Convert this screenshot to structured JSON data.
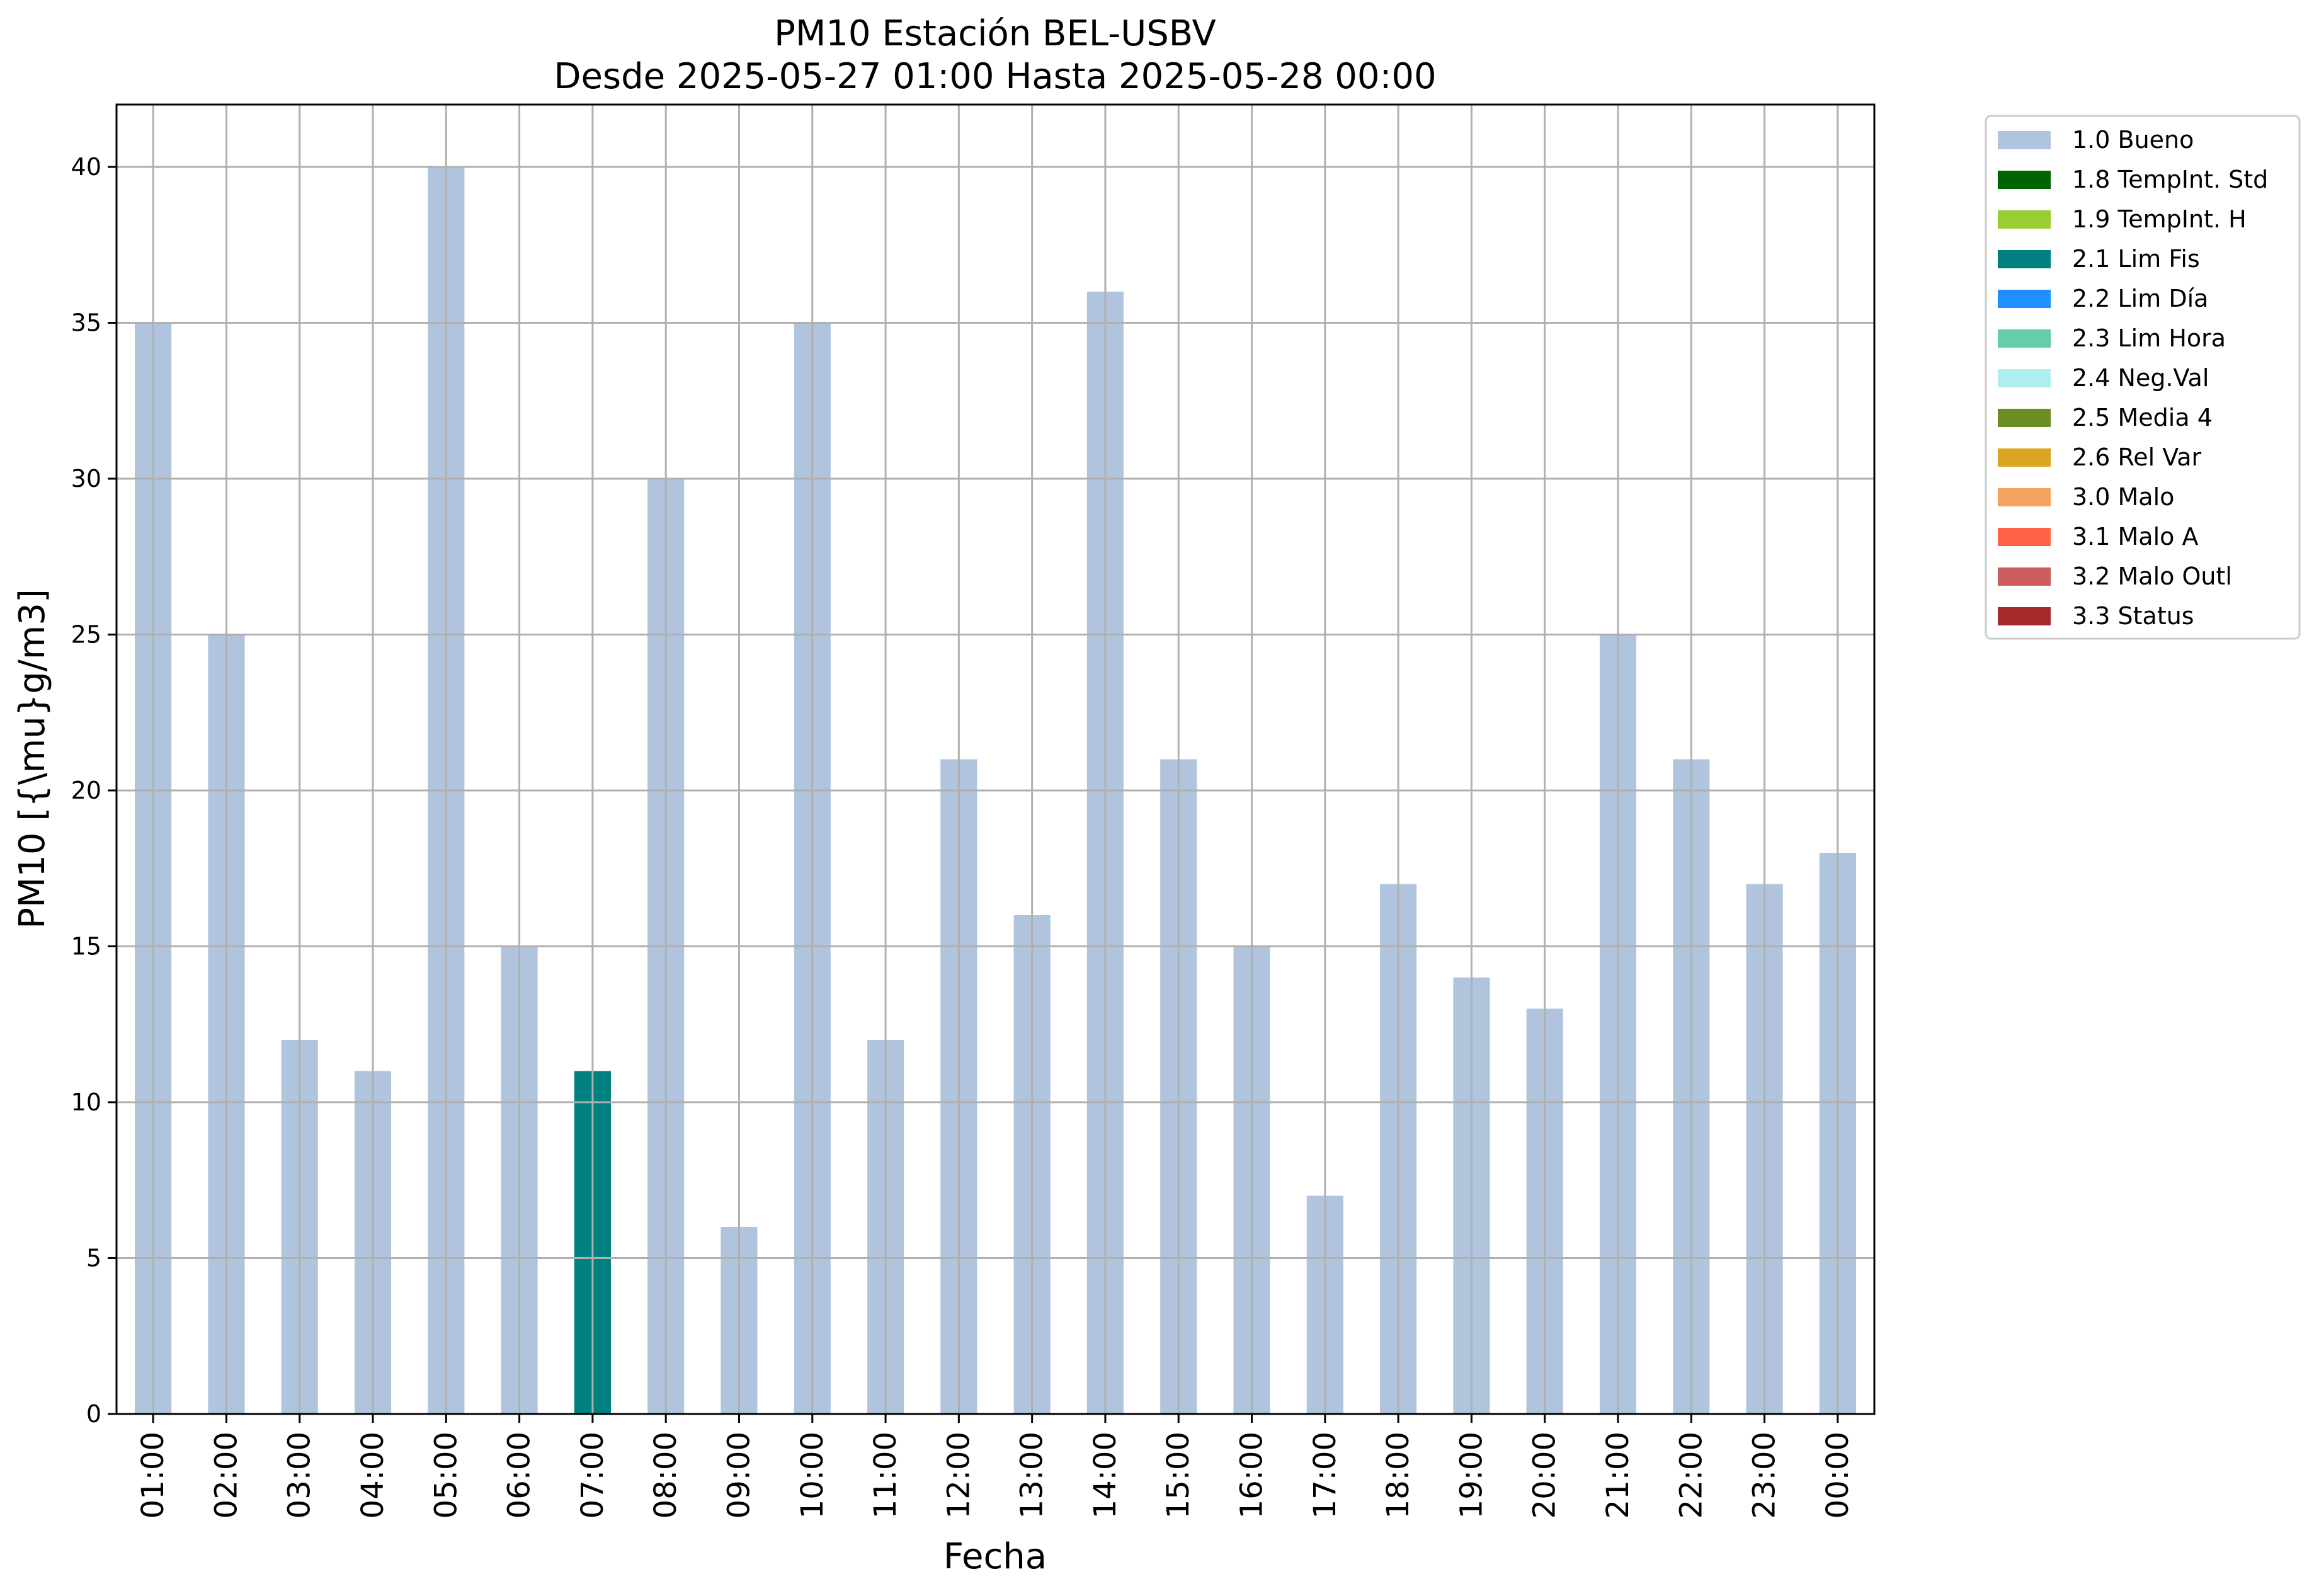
{
  "chart_data": {
    "type": "bar",
    "title": "PM10 Estación BEL-USBV",
    "subtitle": "Desde 2025-05-27 01:00 Hasta 2025-05-28 00:00",
    "xlabel": "Fecha",
    "ylabel": "PM10 [{\\mu}g/m3]",
    "ylim": [
      0,
      42
    ],
    "yticks": [
      0,
      5,
      10,
      15,
      20,
      25,
      30,
      35,
      40
    ],
    "grid": true,
    "legend_position": "outside-right-top",
    "categories": [
      "01:00",
      "02:00",
      "03:00",
      "04:00",
      "05:00",
      "06:00",
      "07:00",
      "08:00",
      "09:00",
      "10:00",
      "11:00",
      "12:00",
      "13:00",
      "14:00",
      "15:00",
      "16:00",
      "17:00",
      "18:00",
      "19:00",
      "20:00",
      "21:00",
      "22:00",
      "23:00",
      "00:00"
    ],
    "values": [
      35,
      25,
      12,
      11,
      40,
      15,
      11,
      30,
      6,
      35,
      12,
      21,
      16,
      36,
      21,
      15,
      7,
      17,
      14,
      13,
      25,
      21,
      17,
      18
    ],
    "flags": [
      "1.0 Bueno",
      "1.0 Bueno",
      "1.0 Bueno",
      "1.0 Bueno",
      "1.0 Bueno",
      "1.0 Bueno",
      "2.1 Lim Fis",
      "1.0 Bueno",
      "1.0 Bueno",
      "1.0 Bueno",
      "1.0 Bueno",
      "1.0 Bueno",
      "1.0 Bueno",
      "1.0 Bueno",
      "1.0 Bueno",
      "1.0 Bueno",
      "1.0 Bueno",
      "1.0 Bueno",
      "1.0 Bueno",
      "1.0 Bueno",
      "1.0 Bueno",
      "1.0 Bueno",
      "1.0 Bueno",
      "1.0 Bueno"
    ],
    "legend": [
      {
        "label": "1.0 Bueno",
        "color": "#b0c4de"
      },
      {
        "label": "1.8 TempInt. Std",
        "color": "#006400"
      },
      {
        "label": "1.9 TempInt. H",
        "color": "#9acd32"
      },
      {
        "label": "2.1 Lim Fis",
        "color": "#008080"
      },
      {
        "label": "2.2 Lim Día",
        "color": "#1e90ff"
      },
      {
        "label": "2.3 Lim Hora",
        "color": "#66cdaa"
      },
      {
        "label": "2.4 Neg.Val",
        "color": "#afeeee"
      },
      {
        "label": "2.5 Media 4",
        "color": "#6b8e23"
      },
      {
        "label": "2.6 Rel Var",
        "color": "#daa520"
      },
      {
        "label": "3.0 Malo",
        "color": "#f4a460"
      },
      {
        "label": "3.1 Malo A",
        "color": "#ff6347"
      },
      {
        "label": "3.2 Malo Outl",
        "color": "#cd5c5c"
      },
      {
        "label": "3.3 Status",
        "color": "#a52a2a"
      }
    ]
  }
}
